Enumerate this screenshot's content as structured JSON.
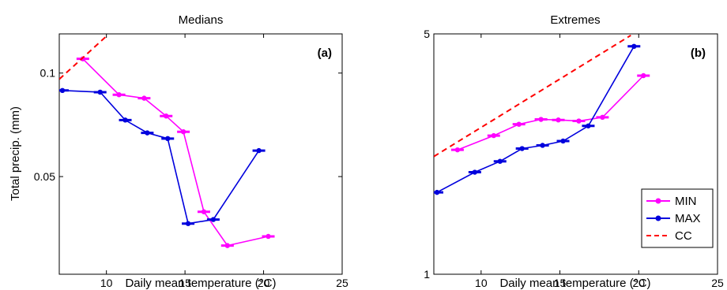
{
  "figure": {
    "ylabel": "Total precip. (mm)",
    "legend": [
      {
        "name": "MIN",
        "color": "#ff00ff",
        "style": "solid-marker"
      },
      {
        "name": "MAX",
        "color": "#0000dd",
        "style": "solid-marker"
      },
      {
        "name": "CC",
        "color": "#ff0000",
        "style": "dashed"
      }
    ],
    "legend_placement": "bottom-right of panel b"
  },
  "chart_data": [
    {
      "type": "line",
      "title": "Medians",
      "tag": "(a)",
      "xlabel": "Daily mean temperature",
      "xlabel_unit": "(°C)",
      "xlim": [
        7,
        25
      ],
      "ylim": [
        0.026,
        0.13
      ],
      "yscale": "log",
      "xticks": [
        10,
        15,
        20,
        25
      ],
      "yticks": [
        0.05,
        0.1
      ],
      "ytick_labels": [
        "0.05",
        "0.1"
      ],
      "series": [
        {
          "name": "MIN",
          "color": "#ff00ff",
          "x": [
            8.5,
            10.8,
            12.4,
            13.8,
            14.9,
            16.2,
            17.7,
            20.3
          ],
          "y": [
            0.11,
            0.0865,
            0.0845,
            0.075,
            0.0675,
            0.0395,
            0.0315,
            0.0335
          ]
        },
        {
          "name": "MAX",
          "color": "#0000dd",
          "x": [
            7.2,
            9.6,
            11.2,
            12.6,
            13.9,
            15.2,
            16.8,
            19.7
          ],
          "y": [
            0.089,
            0.088,
            0.073,
            0.067,
            0.0645,
            0.0365,
            0.0375,
            0.0595
          ]
        },
        {
          "name": "CC",
          "color": "#ff0000",
          "dashed": true,
          "x": [
            7.0,
            10.0
          ],
          "y": [
            0.096,
            0.128
          ]
        }
      ]
    },
    {
      "type": "line",
      "title": "Extremes",
      "tag": "(b)",
      "xlabel": "Daily mean temperature",
      "xlabel_unit": "(°C)",
      "xlim": [
        7,
        25
      ],
      "ylim": [
        1,
        5
      ],
      "yscale": "log",
      "xticks": [
        10,
        15,
        20,
        25
      ],
      "yticks": [
        1,
        5
      ],
      "ytick_labels": [
        "1",
        "5"
      ],
      "series": [
        {
          "name": "MIN",
          "color": "#ff00ff",
          "x": [
            8.5,
            10.8,
            12.4,
            13.8,
            14.9,
            16.2,
            17.7,
            20.3
          ],
          "y": [
            2.3,
            2.53,
            2.73,
            2.82,
            2.81,
            2.79,
            2.86,
            3.78
          ]
        },
        {
          "name": "MAX",
          "color": "#0000dd",
          "x": [
            7.2,
            9.6,
            11.2,
            12.6,
            13.9,
            15.2,
            16.8,
            19.7
          ],
          "y": [
            1.73,
            1.98,
            2.13,
            2.32,
            2.37,
            2.44,
            2.7,
            4.6
          ]
        },
        {
          "name": "CC",
          "color": "#ff0000",
          "dashed": true,
          "x": [
            7.0,
            19.5
          ],
          "y": [
            2.2,
            4.95
          ]
        }
      ]
    }
  ]
}
